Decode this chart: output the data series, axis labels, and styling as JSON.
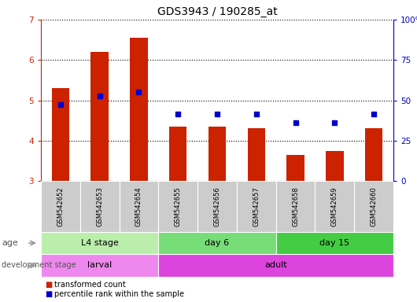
{
  "title": "GDS3943 / 190285_at",
  "samples": [
    "GSM542652",
    "GSM542653",
    "GSM542654",
    "GSM542655",
    "GSM542656",
    "GSM542657",
    "GSM542658",
    "GSM542659",
    "GSM542660"
  ],
  "bar_values": [
    5.3,
    6.2,
    6.55,
    4.35,
    4.35,
    4.3,
    3.65,
    3.75,
    4.3
  ],
  "dot_values": [
    4.9,
    5.1,
    5.2,
    4.65,
    4.65,
    4.65,
    4.45,
    4.45,
    4.65
  ],
  "bar_bottom": 3.0,
  "ylim": [
    3.0,
    7.0
  ],
  "y_left_ticks": [
    3,
    4,
    5,
    6,
    7
  ],
  "y_right_ticks": [
    0,
    25,
    50,
    75,
    100
  ],
  "y_right_tick_positions": [
    3.0,
    4.0,
    5.0,
    6.0,
    7.0
  ],
  "bar_color": "#CC2200",
  "dot_color": "#0000CC",
  "grid_color": "#000000",
  "age_groups": [
    {
      "label": "L4 stage",
      "start": 0,
      "end": 3,
      "color": "#BBEEAA"
    },
    {
      "label": "day 6",
      "start": 3,
      "end": 6,
      "color": "#77DD77"
    },
    {
      "label": "day 15",
      "start": 6,
      "end": 9,
      "color": "#44CC44"
    }
  ],
  "dev_groups": [
    {
      "label": "larval",
      "start": 0,
      "end": 3,
      "color": "#EE88EE"
    },
    {
      "label": "adult",
      "start": 3,
      "end": 9,
      "color": "#DD44DD"
    }
  ],
  "sample_bg_color": "#CCCCCC",
  "legend_items": [
    {
      "label": "transformed count",
      "color": "#CC2200",
      "marker": "s"
    },
    {
      "label": "percentile rank within the sample",
      "color": "#0000CC",
      "marker": "s"
    }
  ],
  "left_axis_color": "#CC2200",
  "right_axis_color": "#0000CC",
  "title_fontsize": 10,
  "tick_fontsize": 7.5,
  "label_fontsize": 8,
  "arrow_color": "#999999"
}
